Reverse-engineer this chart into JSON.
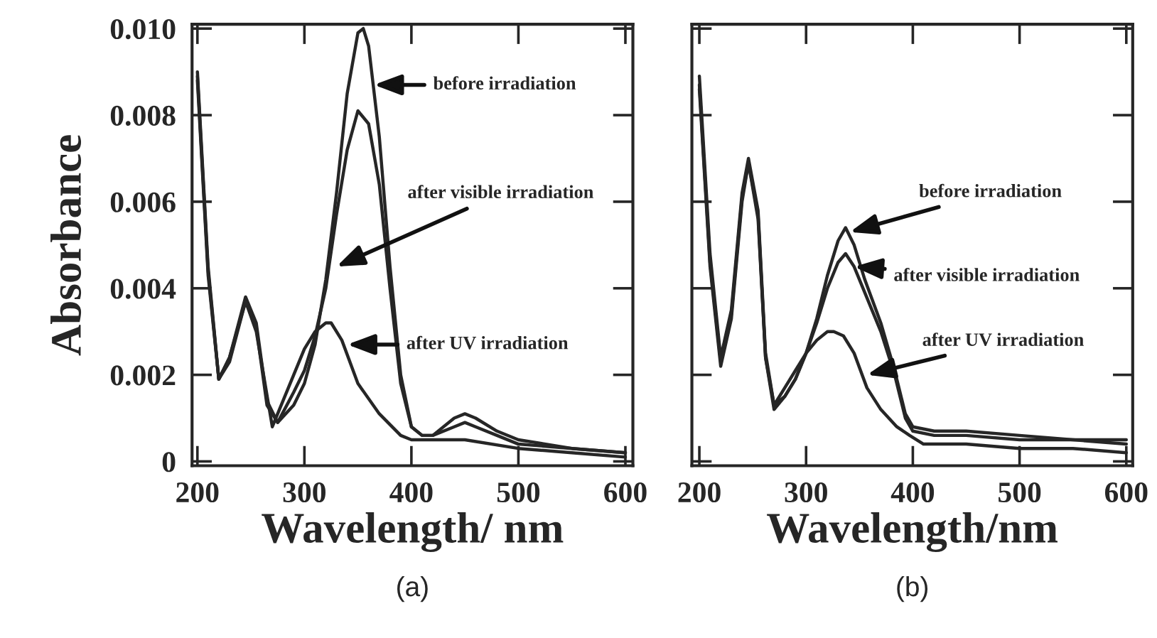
{
  "chart_data": [
    {
      "type": "line",
      "title": "(a)",
      "xlabel": "Wavelength/ nm",
      "ylabel": "Absorbance",
      "xlim": [
        195,
        607
      ],
      "xticks": [
        200,
        300,
        400,
        500,
        600
      ],
      "ylim": [
        -0.0001,
        0.0101
      ],
      "yticks": [
        0,
        0.002,
        0.004,
        0.006,
        0.008,
        {
          "value": 0.01,
          "label": "0.010"
        }
      ],
      "series": [
        {
          "color": "#262626",
          "x": [
            200,
            210,
            220,
            230,
            245,
            255,
            265,
            275,
            290,
            300,
            310,
            320,
            330,
            340,
            350,
            355,
            360,
            370,
            380,
            390,
            400,
            410,
            420,
            440,
            450,
            460,
            480,
            500,
            550,
            600
          ],
          "values": [
            0.009,
            0.0045,
            0.0019,
            0.0024,
            0.0038,
            0.0032,
            0.0014,
            0.0009,
            0.0013,
            0.0018,
            0.0027,
            0.0042,
            0.0062,
            0.0085,
            0.0099,
            0.01,
            0.0096,
            0.0075,
            0.0045,
            0.002,
            0.0008,
            0.0006,
            0.0006,
            0.001,
            0.0011,
            0.001,
            0.0007,
            0.0005,
            0.0003,
            0.0002
          ]
        },
        {
          "color": "#262626",
          "x": [
            200,
            210,
            220,
            230,
            245,
            255,
            265,
            275,
            290,
            300,
            310,
            320,
            330,
            340,
            350,
            360,
            370,
            380,
            390,
            400,
            410,
            420,
            440,
            450,
            460,
            480,
            500,
            550,
            600
          ],
          "values": [
            0.0089,
            0.0044,
            0.0019,
            0.0024,
            0.0037,
            0.0031,
            0.0013,
            0.0009,
            0.0016,
            0.0021,
            0.0029,
            0.004,
            0.0057,
            0.0072,
            0.0081,
            0.0078,
            0.0064,
            0.004,
            0.0018,
            0.0008,
            0.0006,
            0.0006,
            0.0008,
            0.0009,
            0.0008,
            0.0006,
            0.0004,
            0.0003,
            0.0002
          ]
        },
        {
          "color": "#262626",
          "x": [
            200,
            210,
            220,
            230,
            245,
            255,
            270,
            290,
            300,
            310,
            320,
            325,
            335,
            350,
            370,
            390,
            400,
            450,
            500,
            550,
            600
          ],
          "values": [
            0.0088,
            0.0043,
            0.0019,
            0.0023,
            0.0037,
            0.003,
            0.0008,
            0.002,
            0.0026,
            0.003,
            0.0032,
            0.0032,
            0.0028,
            0.0018,
            0.0011,
            0.0006,
            0.0005,
            0.0005,
            0.0003,
            0.0002,
            0.0001
          ]
        }
      ],
      "annotations": [
        {
          "text": "before irradiation",
          "x": 365,
          "y": 0.0087
        },
        {
          "text": "after visible irradiation",
          "x": 330,
          "y": 0.0045
        },
        {
          "text": "after UV irradiation",
          "x": 340,
          "y": 0.0027
        }
      ]
    },
    {
      "type": "line",
      "title": "(b)",
      "xlabel": "Wavelength/nm",
      "xlim": [
        193,
        606
      ],
      "xticks": [
        200,
        300,
        400,
        500,
        600
      ],
      "ylim": [
        -0.0001,
        0.0101
      ],
      "yticks": [
        {
          "value": 0,
          "label": null
        },
        {
          "value": 0.002,
          "label": null
        },
        {
          "value": 0.004,
          "label": null
        },
        {
          "value": 0.006,
          "label": null
        },
        {
          "value": 0.008,
          "label": null
        },
        {
          "value": 0.01,
          "label": null
        }
      ],
      "tick_labels": "x",
      "series": [
        {
          "color": "#262626",
          "x": [
            200,
            210,
            220,
            230,
            240,
            246,
            255,
            262,
            270,
            280,
            290,
            300,
            310,
            320,
            330,
            337,
            345,
            355,
            370,
            383,
            393,
            400,
            420,
            450,
            500,
            550,
            600
          ],
          "values": [
            0.0089,
            0.0048,
            0.0024,
            0.0035,
            0.0062,
            0.007,
            0.0058,
            0.0025,
            0.0013,
            0.0015,
            0.0019,
            0.0025,
            0.0033,
            0.0043,
            0.0051,
            0.0054,
            0.005,
            0.0042,
            0.0032,
            0.0021,
            0.0011,
            0.0008,
            0.0007,
            0.0007,
            0.0006,
            0.0005,
            0.0005
          ]
        },
        {
          "color": "#262626",
          "x": [
            200,
            210,
            220,
            230,
            240,
            246,
            255,
            262,
            270,
            280,
            290,
            300,
            310,
            320,
            330,
            337,
            345,
            355,
            370,
            383,
            393,
            400,
            420,
            450,
            500,
            550,
            600
          ],
          "values": [
            0.0087,
            0.0046,
            0.0023,
            0.0034,
            0.0061,
            0.0069,
            0.0057,
            0.0024,
            0.0012,
            0.0015,
            0.0019,
            0.0025,
            0.0032,
            0.004,
            0.0046,
            0.0048,
            0.0045,
            0.0039,
            0.003,
            0.002,
            0.001,
            0.0007,
            0.0006,
            0.0006,
            0.0005,
            0.0005,
            0.0004
          ]
        },
        {
          "color": "#262626",
          "x": [
            200,
            210,
            220,
            230,
            240,
            246,
            255,
            262,
            270,
            280,
            290,
            300,
            310,
            320,
            326,
            335,
            345,
            357,
            370,
            385,
            397,
            410,
            450,
            500,
            550,
            600
          ],
          "values": [
            0.0086,
            0.0045,
            0.0022,
            0.0033,
            0.006,
            0.0069,
            0.0056,
            0.0024,
            0.0013,
            0.0017,
            0.0021,
            0.0025,
            0.0028,
            0.003,
            0.003,
            0.0029,
            0.0025,
            0.0017,
            0.0012,
            0.0008,
            0.0006,
            0.0004,
            0.0004,
            0.0003,
            0.0003,
            0.0002
          ]
        }
      ],
      "annotations": [
        {
          "text": "before irradiation",
          "x": 341,
          "y": 0.0053
        },
        {
          "text": "after visible irradiation",
          "x": 345,
          "y": 0.0045
        },
        {
          "text": "after UV irradiation",
          "x": 357,
          "y": 0.002
        }
      ]
    }
  ]
}
